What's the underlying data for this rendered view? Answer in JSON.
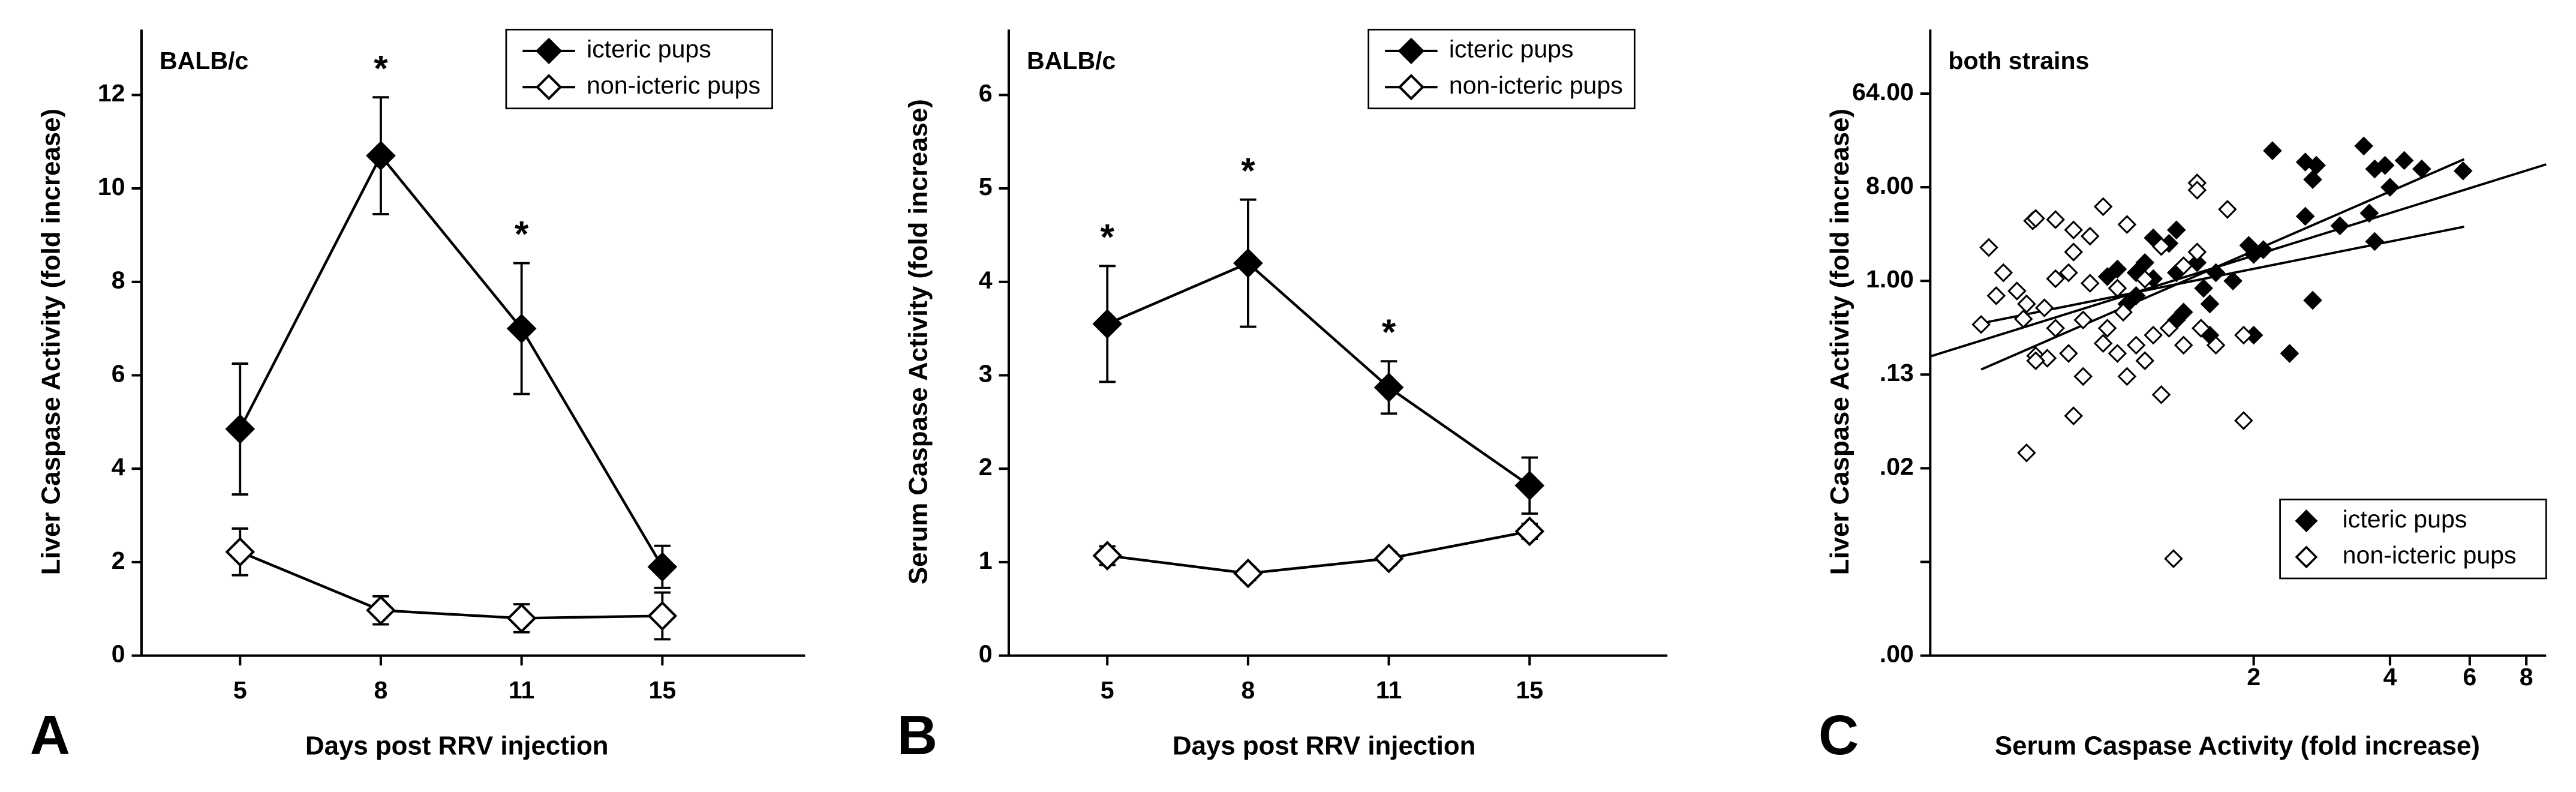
{
  "chart_data": [
    {
      "type": "line",
      "panel_label": "A",
      "subtitle": "BALB/c",
      "xlabel": "Days post RRV injection",
      "ylabel": "Liver Caspase Activity (fold increase)",
      "categories": [
        "5",
        "8",
        "11",
        "15"
      ],
      "ylim": [
        0,
        13.4
      ],
      "yticks": [
        0,
        2,
        4,
        6,
        8,
        10,
        12
      ],
      "legend": "upper right",
      "series": [
        {
          "name": "icteric pups",
          "color": "#000000",
          "marker_fill": "#000000",
          "values": [
            4.85,
            10.7,
            7.0,
            1.9
          ],
          "errors": [
            1.4,
            1.25,
            1.4,
            0.45
          ],
          "significance": [
            null,
            "*",
            "*",
            null
          ]
        },
        {
          "name": "non-icteric pups",
          "color": "#000000",
          "marker_fill": "#ffffff",
          "values": [
            2.22,
            0.97,
            0.8,
            0.85
          ],
          "errors": [
            0.5,
            0.3,
            0.3,
            0.5
          ]
        }
      ]
    },
    {
      "type": "line",
      "panel_label": "B",
      "subtitle": "BALB/c",
      "xlabel": "Days post RRV injection",
      "ylabel": "Serum Caspase Activity (fold increase)",
      "categories": [
        "5",
        "8",
        "11",
        "15"
      ],
      "ylim": [
        0,
        6.7
      ],
      "yticks": [
        0,
        1,
        2,
        3,
        4,
        5,
        6
      ],
      "legend": "upper right",
      "series": [
        {
          "name": "icteric pups",
          "color": "#000000",
          "marker_fill": "#000000",
          "values": [
            3.55,
            4.2,
            2.87,
            1.82
          ],
          "errors": [
            0.62,
            0.68,
            0.28,
            0.3
          ],
          "significance": [
            "*",
            "*",
            "*",
            null
          ]
        },
        {
          "name": "non-icteric pups",
          "color": "#000000",
          "marker_fill": "#ffffff",
          "values": [
            1.07,
            0.88,
            1.04,
            1.33
          ],
          "errors": [
            0.1,
            0.07,
            0.07,
            0.08
          ]
        }
      ]
    },
    {
      "type": "scatter",
      "panel_label": "C",
      "subtitle": "both strains",
      "xlabel": "Serum Caspase Activity (fold increase)",
      "ylabel": "Liver Caspase Activity (fold increase)",
      "xscale": "log",
      "yscale": "log",
      "xlim": [
        0.386,
        8.85
      ],
      "xticks": [
        2,
        4,
        6,
        8
      ],
      "ylim": [
        0.000244140625,
        265
      ],
      "yticks": [
        {
          "value": 64,
          "label": "64.00"
        },
        {
          "value": 8,
          "label": "8.00"
        },
        {
          "value": 1,
          "label": "1.00"
        },
        {
          "value": 0.125,
          "label": ".13"
        },
        {
          "value": 0.015625,
          "label": ".02"
        },
        {
          "value": 0.001953125,
          "label": null
        },
        {
          "value": 0.000244140625,
          "label": ".00"
        }
      ],
      "legend": "lower right",
      "series": [
        {
          "name": "icteric pups",
          "color": "#000000",
          "marker_fill": "#000000",
          "x": [
            2.2,
            2.75,
            2.6,
            3.5,
            3.9,
            4.3,
            4.7,
            5.8,
            3.7,
            2.7,
            4.0,
            2.6,
            3.6,
            3.1,
            3.7,
            1.95,
            2.0,
            2.1,
            1.5,
            1.35,
            1.2,
            1.1,
            1.0,
            1.15,
            1.3,
            1.2,
            1.55,
            1.6,
            1.4,
            1.35,
            1.6,
            2.0,
            2.4,
            2.7,
            1.1,
            0.95,
            1.05,
            1.8,
            1.65,
            1.35
          ],
          "y": [
            18,
            13,
            14,
            20,
            13,
            14.5,
            12,
            11.5,
            12,
            9.5,
            8,
            4.2,
            4.5,
            3.4,
            2.4,
            2.2,
            1.8,
            2.0,
            1.5,
            1.2,
            1.05,
            1.2,
            1.3,
            1.5,
            2.3,
            2.6,
            0.85,
            0.6,
            0.5,
            0.42,
            0.3,
            0.3,
            0.2,
            0.65,
            0.72,
            1.1,
            0.6,
            1.0,
            1.2,
            3.1
          ]
        },
        {
          "name": "non-icteric pups",
          "color": "#000000",
          "marker_fill": "#ffffff",
          "x": [
            0.52,
            0.65,
            0.66,
            0.56,
            0.6,
            0.63,
            0.54,
            0.5,
            0.62,
            0.66,
            0.7,
            0.78,
            0.66,
            0.84,
            0.63,
            0.8,
            0.73,
            0.8,
            0.93,
            0.87,
            0.8,
            0.78,
            0.73,
            0.69,
            0.73,
            0.84,
            0.95,
            0.93,
            1.0,
            1.1,
            1.05,
            1.15,
            1.25,
            1.2,
            1.3,
            1.4,
            1.53,
            1.65,
            1.9,
            1.05,
            1.25,
            1.15,
            1.4,
            1.5,
            1.5,
            1.75,
            1.5,
            0.87,
            1.0,
            1.9,
            1.33,
            1.03
          ],
          "y": [
            2.1,
            3.8,
            4.0,
            1.2,
            0.8,
            0.6,
            0.72,
            0.38,
            0.43,
            0.19,
            0.18,
            0.2,
            0.17,
            0.12,
            0.022,
            0.05,
            3.9,
            3.1,
            5.2,
            2.7,
            1.9,
            1.2,
            1.05,
            0.55,
            0.35,
            0.42,
            0.35,
            0.25,
            0.2,
            0.24,
            0.12,
            0.17,
            0.08,
            0.3,
            0.35,
            0.24,
            0.35,
            0.24,
            0.3,
            3.5,
            2.15,
            1.04,
            1.4,
            8.8,
            7.5,
            4.9,
            1.9,
            0.95,
            0.85,
            0.045,
            0.0021,
            0.5
          ]
        }
      ],
      "fit_lines": [
        {
          "x": [
            0.5,
            5.83
          ],
          "y": [
            0.14,
            14.9
          ]
        },
        {
          "x": [
            0.386,
            8.85
          ],
          "y": [
            0.187,
            13.3
          ]
        },
        {
          "x": [
            0.5,
            5.83
          ],
          "y": [
            0.39,
            3.33
          ]
        }
      ]
    }
  ]
}
